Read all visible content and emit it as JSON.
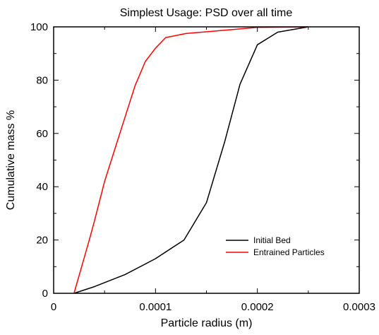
{
  "chart_data": {
    "type": "line",
    "title": "Simplest Usage: PSD over all time",
    "xlabel": "Particle radius (m)",
    "ylabel": "Cumulative mass %",
    "xlim": [
      0,
      0.0003
    ],
    "ylim": [
      0,
      100
    ],
    "x_ticks": [
      0,
      0.0001,
      0.0002,
      0.0003
    ],
    "x_tick_labels": [
      "0",
      "0.0001",
      "0.0002",
      "0.0003"
    ],
    "y_ticks": [
      0,
      20,
      40,
      60,
      80,
      100
    ],
    "y_tick_labels": [
      "0",
      "20",
      "40",
      "60",
      "80",
      "100"
    ],
    "grid": false,
    "legend_position": "bottom-right",
    "series": [
      {
        "name": "Initial Bed",
        "color": "#000000",
        "points": [
          [
            2e-05,
            0
          ],
          [
            4e-05,
            2.5
          ],
          [
            7e-05,
            7
          ],
          [
            0.0001,
            13
          ],
          [
            0.000128,
            20
          ],
          [
            0.00015,
            34
          ],
          [
            0.000168,
            57
          ],
          [
            0.000183,
            78.5
          ],
          [
            0.0002,
            93.3
          ],
          [
            0.00022,
            98
          ],
          [
            0.00025,
            100
          ]
        ]
      },
      {
        "name": "Entrained Particles",
        "color": "#ff0000",
        "points": [
          [
            2e-05,
            0
          ],
          [
            3.5e-05,
            20
          ],
          [
            4e-05,
            27
          ],
          [
            5e-05,
            42
          ],
          [
            6e-05,
            54
          ],
          [
            7e-05,
            66
          ],
          [
            8e-05,
            78
          ],
          [
            9e-05,
            87
          ],
          [
            0.0001,
            92
          ],
          [
            0.00011,
            96
          ],
          [
            0.00013,
            97.5
          ],
          [
            0.00016,
            98.5
          ],
          [
            0.0002,
            99.8
          ],
          [
            0.00025,
            100
          ]
        ]
      }
    ]
  }
}
